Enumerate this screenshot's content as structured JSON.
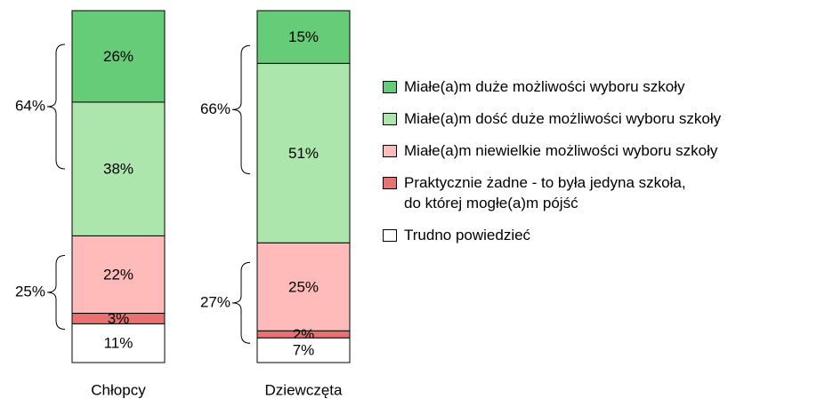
{
  "chart_data": {
    "type": "stacked_bar",
    "categories": [
      "Chłopcy",
      "Dziewczęta"
    ],
    "ylim": [
      0,
      100
    ],
    "series": [
      {
        "name": "Miałe(a)m duże możliwości wyboru szkoły",
        "color": "#66cc77",
        "values": [
          26,
          15
        ],
        "value_labels": [
          "26%",
          "15%"
        ]
      },
      {
        "name": "Miałe(a)m dość duże możliwości wyboru szkoły",
        "color": "#ade6ad",
        "values": [
          38,
          51
        ],
        "value_labels": [
          "38%",
          "51%"
        ]
      },
      {
        "name": "Miałe(a)m niewielkie możliwości wyboru szkoły",
        "color": "#ffbaba",
        "values": [
          22,
          25
        ],
        "value_labels": [
          "22%",
          "25%"
        ]
      },
      {
        "name": "Praktycznie żadne - to była jedyna szkoła,\ndo której mogłe(a)m pójść",
        "color": "#e87272",
        "values": [
          3,
          2
        ],
        "value_labels": [
          "3%",
          "2%"
        ]
      },
      {
        "name": "Trudno powiedzieć",
        "color": "#ffffff",
        "values": [
          11,
          7
        ],
        "value_labels": [
          "11%",
          "7%"
        ]
      }
    ],
    "brackets": [
      [
        {
          "value": 64,
          "label": "64%"
        },
        {
          "value": 25,
          "label": "25%"
        }
      ],
      [
        {
          "value": 66,
          "label": "66%"
        },
        {
          "value": 27,
          "label": "27%"
        }
      ]
    ]
  }
}
